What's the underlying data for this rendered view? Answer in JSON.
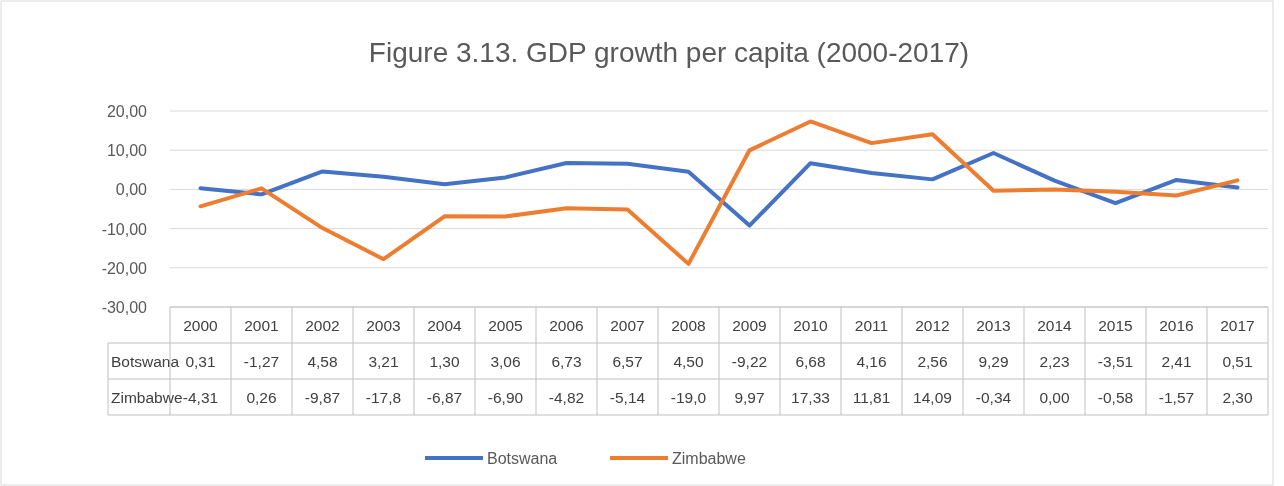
{
  "chart_data": {
    "type": "line",
    "title": "Figure 3.13. GDP growth per capita (2000-2017)",
    "categories": [
      "2000",
      "2001",
      "2002",
      "2003",
      "2004",
      "2005",
      "2006",
      "2007",
      "2008",
      "2009",
      "2010",
      "2011",
      "2012",
      "2013",
      "2014",
      "2015",
      "2016",
      "2017"
    ],
    "series": [
      {
        "name": "Botswana",
        "color": "#4472c4",
        "values": [
          0.31,
          -1.27,
          4.58,
          3.21,
          1.3,
          3.06,
          6.73,
          6.57,
          4.5,
          -9.22,
          6.68,
          4.16,
          2.56,
          9.29,
          2.23,
          -3.51,
          2.41,
          0.51
        ],
        "value_labels": [
          "0,31",
          "-1,27",
          "4,58",
          "3,21",
          "1,30",
          "3,06",
          "6,73",
          "6,57",
          "4,50",
          "-9,22",
          "6,68",
          "4,16",
          "2,56",
          "9,29",
          "2,23",
          "-3,51",
          "2,41",
          "0,51"
        ]
      },
      {
        "name": "Zimbabwe",
        "color": "#ed7d31",
        "values": [
          -4.31,
          0.26,
          -9.87,
          -17.8,
          -6.87,
          -6.9,
          -4.82,
          -5.14,
          -19.0,
          9.97,
          17.33,
          11.81,
          14.09,
          -0.34,
          0.0,
          -0.58,
          -1.57,
          2.3
        ],
        "value_labels": [
          "-4,31",
          "0,26",
          "-9,87",
          "-17,8",
          "-6,87",
          "-6,90",
          "-4,82",
          "-5,14",
          "-19,0",
          "9,97",
          "17,33",
          "11,81",
          "14,09",
          "-0,34",
          "0,00",
          "-0,58",
          "-1,57",
          "2,30"
        ]
      }
    ],
    "ylim": [
      -30,
      20
    ],
    "yticks": [
      {
        "value": -30,
        "label": "-30,00"
      },
      {
        "value": -20,
        "label": "-20,00"
      },
      {
        "value": -10,
        "label": "-10,00"
      },
      {
        "value": 0,
        "label": "0,00"
      },
      {
        "value": 10,
        "label": "10,00"
      },
      {
        "value": 20,
        "label": "20,00"
      }
    ],
    "grid": "y",
    "legend": "bottom",
    "line_style": "solid"
  }
}
